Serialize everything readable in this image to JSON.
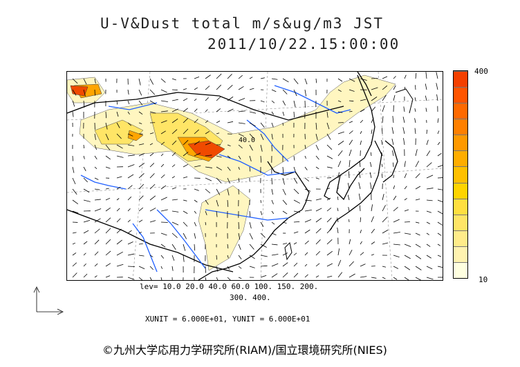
{
  "title": {
    "line1": "U-V&Dust total m/s&ug/m3 JST",
    "line2": "2011/10/22.15:00:00"
  },
  "colorbar": {
    "max_label": "400",
    "min_label": "10",
    "colors": [
      "#ffffe0",
      "#fff3b0",
      "#ffec8a",
      "#ffe566",
      "#ffdf40",
      "#ffd400",
      "#ffc000",
      "#ffad00",
      "#ff9900",
      "#ff8000",
      "#ff6a00",
      "#ff5500",
      "#f44000"
    ]
  },
  "contour_label": "40.0",
  "levels": {
    "line1": "lev= 10.0 20.0 40.0 60.0 100. 150. 200.",
    "line2": "300. 400."
  },
  "units": "XUNIT = 6.000E+01, YUNIT = 6.000E+01",
  "credit": "©九州大学応用力学研究所(RIAM)/国立環境研究所(NIES)",
  "colors": {
    "dust_low": "#fff6c0",
    "dust_mid": "#ffe566",
    "dust_high": "#ffa500",
    "dust_peak": "#f04a00",
    "river": "#1f5fff",
    "coast": "#000000"
  }
}
